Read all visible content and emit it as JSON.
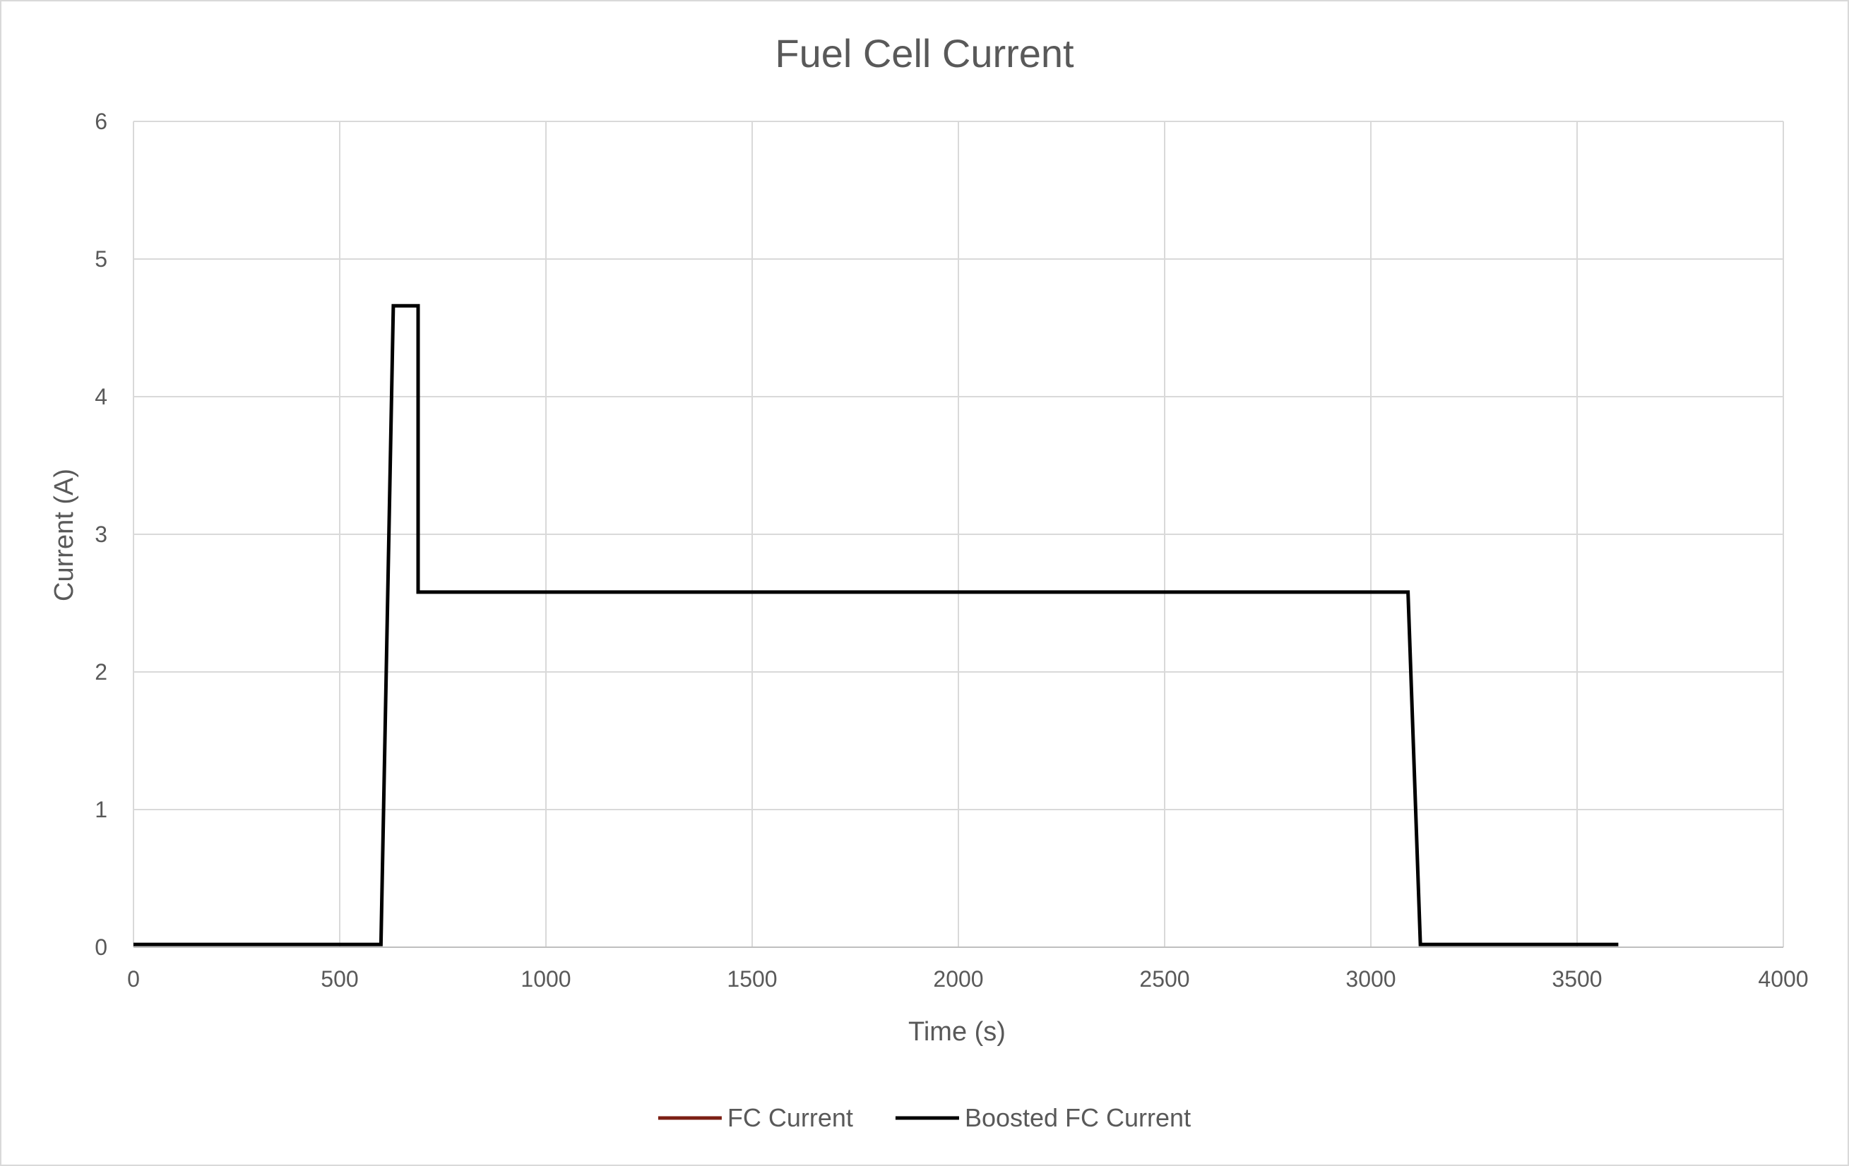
{
  "chart_data": {
    "type": "line",
    "title": "Fuel Cell Current",
    "xlabel": "Time (s)",
    "ylabel": "Current (A)",
    "xlim": [
      0,
      4000
    ],
    "ylim": [
      0,
      6
    ],
    "x_ticks": [
      "0",
      "500",
      "1000",
      "1500",
      "2000",
      "2500",
      "3000",
      "3500",
      "4000"
    ],
    "y_ticks": [
      "0",
      "1",
      "2",
      "3",
      "4",
      "5",
      "6"
    ],
    "x_tick_values": [
      0,
      500,
      1000,
      1500,
      2000,
      2500,
      3000,
      3500,
      4000
    ],
    "y_tick_values": [
      0,
      1,
      2,
      3,
      4,
      5,
      6
    ],
    "grid": true,
    "legend_position": "bottom",
    "series": [
      {
        "name": "FC Current",
        "color": "#7b1f14",
        "x": [],
        "y": []
      },
      {
        "name": "Boosted FC Current",
        "color": "#000000",
        "x": [
          0,
          600,
          630,
          690,
          690,
          3090,
          3120,
          3600
        ],
        "y": [
          0.02,
          0.02,
          4.66,
          4.66,
          2.58,
          2.58,
          0.02,
          0.02
        ]
      }
    ]
  }
}
